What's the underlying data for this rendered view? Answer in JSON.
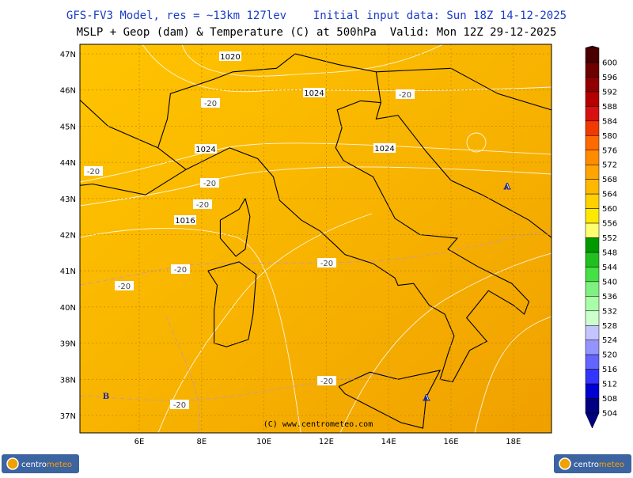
{
  "header": {
    "line1": "GFS-FV3 Model, res = ~13km 127lev    Initial input data: Sun 18Z 14-12-2025",
    "line2": "MSLP + Geop (dam) & Temperature (C) at 500hPa  Valid: Mon 12Z 29-12-2025"
  },
  "map": {
    "lat_ticks": [
      {
        "value": 47,
        "label": "47N"
      },
      {
        "value": 46,
        "label": "46N"
      },
      {
        "value": 45,
        "label": "45N"
      },
      {
        "value": 44,
        "label": "44N"
      },
      {
        "value": 43,
        "label": "43N"
      },
      {
        "value": 42,
        "label": "42N"
      },
      {
        "value": 41,
        "label": "41N"
      },
      {
        "value": 40,
        "label": "40N"
      },
      {
        "value": 39,
        "label": "39N"
      },
      {
        "value": 38,
        "label": "38N"
      },
      {
        "value": 37,
        "label": "37N"
      }
    ],
    "lon_ticks": [
      {
        "value": 6,
        "label": "6E"
      },
      {
        "value": 8,
        "label": "8E"
      },
      {
        "value": 10,
        "label": "10E"
      },
      {
        "value": 12,
        "label": "12E"
      },
      {
        "value": 14,
        "label": "14E"
      },
      {
        "value": 16,
        "label": "16E"
      },
      {
        "value": 18,
        "label": "18E"
      }
    ],
    "isobar_labels": [
      "1020",
      "1024",
      "1024",
      "1024",
      "1016"
    ],
    "isotherm_labels": [
      "-20",
      "-20",
      "-20",
      "-20",
      "-20",
      "-20",
      "-20",
      "-20",
      "-20",
      "-20"
    ],
    "pressure_centers": [
      "A",
      "A",
      "B"
    ],
    "copyright": "(C) www.centrometeo.com"
  },
  "colorbar": {
    "levels": [
      600,
      596,
      592,
      588,
      584,
      580,
      576,
      572,
      568,
      564,
      560,
      556,
      552,
      548,
      544,
      540,
      536,
      532,
      528,
      524,
      520,
      516,
      512,
      508,
      504
    ],
    "colors": [
      "#4a0000",
      "#6e0000",
      "#900000",
      "#b40000",
      "#d81010",
      "#f03a00",
      "#ff6a00",
      "#ff8c00",
      "#ffa400",
      "#ffb800",
      "#ffd000",
      "#ffe800",
      "#ffff70",
      "#009a00",
      "#20c020",
      "#44e044",
      "#80f080",
      "#a8ffa8",
      "#ccffcc",
      "#c4c4ff",
      "#9494ff",
      "#6464ff",
      "#3434ff",
      "#0000d0",
      "#000080"
    ]
  },
  "footer": {
    "brand": [
      "centro",
      "meteo"
    ]
  }
}
